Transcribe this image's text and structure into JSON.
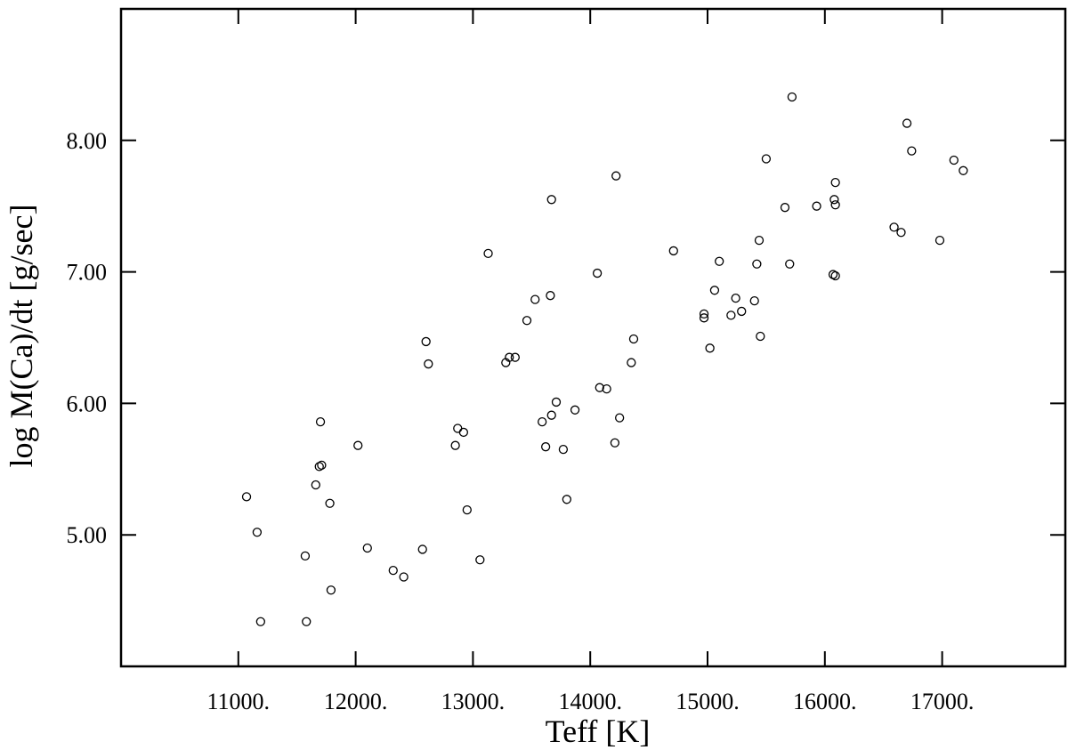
{
  "chart_data": {
    "type": "scatter",
    "xlabel": "Teff [K]",
    "ylabel": "log M(Ca)/dt [g/sec]",
    "xlim": [
      10000,
      18050
    ],
    "ylim": [
      4.0,
      9.0
    ],
    "x_ticks": [
      11000,
      12000,
      13000,
      14000,
      15000,
      16000,
      17000
    ],
    "x_tick_labels": [
      "11000.",
      "12000.",
      "13000.",
      "14000.",
      "15000.",
      "16000.",
      "17000."
    ],
    "y_ticks": [
      5,
      6,
      7,
      8
    ],
    "y_tick_labels": [
      "5.00",
      "6.00",
      "7.00",
      "8.00"
    ],
    "grid": false,
    "marker": "open-circle",
    "colors": {
      "marker": "#000000",
      "axes": "#000000",
      "background": "#ffffff"
    },
    "points": [
      {
        "x": 11070,
        "y": 5.29
      },
      {
        "x": 11160,
        "y": 5.02
      },
      {
        "x": 11190,
        "y": 4.34
      },
      {
        "x": 11570,
        "y": 4.84
      },
      {
        "x": 11580,
        "y": 4.34
      },
      {
        "x": 11660,
        "y": 5.38
      },
      {
        "x": 11690,
        "y": 5.52
      },
      {
        "x": 11710,
        "y": 5.53
      },
      {
        "x": 11700,
        "y": 5.86
      },
      {
        "x": 11780,
        "y": 5.24
      },
      {
        "x": 11790,
        "y": 4.58
      },
      {
        "x": 12020,
        "y": 5.68
      },
      {
        "x": 12100,
        "y": 4.9
      },
      {
        "x": 12320,
        "y": 4.73
      },
      {
        "x": 12410,
        "y": 4.68
      },
      {
        "x": 12570,
        "y": 4.89
      },
      {
        "x": 12600,
        "y": 6.47
      },
      {
        "x": 12620,
        "y": 6.3
      },
      {
        "x": 12850,
        "y": 5.68
      },
      {
        "x": 12870,
        "y": 5.81
      },
      {
        "x": 12920,
        "y": 5.78
      },
      {
        "x": 12950,
        "y": 5.19
      },
      {
        "x": 13060,
        "y": 4.81
      },
      {
        "x": 13130,
        "y": 7.14
      },
      {
        "x": 13280,
        "y": 6.31
      },
      {
        "x": 13310,
        "y": 6.35
      },
      {
        "x": 13360,
        "y": 6.35
      },
      {
        "x": 13460,
        "y": 6.63
      },
      {
        "x": 13530,
        "y": 6.79
      },
      {
        "x": 13590,
        "y": 5.86
      },
      {
        "x": 13620,
        "y": 5.67
      },
      {
        "x": 13660,
        "y": 6.82
      },
      {
        "x": 13670,
        "y": 5.91
      },
      {
        "x": 13670,
        "y": 7.55
      },
      {
        "x": 13710,
        "y": 6.01
      },
      {
        "x": 13770,
        "y": 5.65
      },
      {
        "x": 13800,
        "y": 5.27
      },
      {
        "x": 13870,
        "y": 5.95
      },
      {
        "x": 14060,
        "y": 6.99
      },
      {
        "x": 14080,
        "y": 6.12
      },
      {
        "x": 14140,
        "y": 6.11
      },
      {
        "x": 14210,
        "y": 5.7
      },
      {
        "x": 14220,
        "y": 7.73
      },
      {
        "x": 14250,
        "y": 5.89
      },
      {
        "x": 14350,
        "y": 6.31
      },
      {
        "x": 14370,
        "y": 6.49
      },
      {
        "x": 14710,
        "y": 7.16
      },
      {
        "x": 14970,
        "y": 6.68
      },
      {
        "x": 14970,
        "y": 6.65
      },
      {
        "x": 15020,
        "y": 6.42
      },
      {
        "x": 15060,
        "y": 6.86
      },
      {
        "x": 15100,
        "y": 7.08
      },
      {
        "x": 15200,
        "y": 6.67
      },
      {
        "x": 15240,
        "y": 6.8
      },
      {
        "x": 15290,
        "y": 6.7
      },
      {
        "x": 15400,
        "y": 6.78
      },
      {
        "x": 15420,
        "y": 7.06
      },
      {
        "x": 15440,
        "y": 7.24
      },
      {
        "x": 15450,
        "y": 6.51
      },
      {
        "x": 15500,
        "y": 7.86
      },
      {
        "x": 15660,
        "y": 7.49
      },
      {
        "x": 15700,
        "y": 7.06
      },
      {
        "x": 15720,
        "y": 8.33
      },
      {
        "x": 15930,
        "y": 7.5
      },
      {
        "x": 16070,
        "y": 6.98
      },
      {
        "x": 16080,
        "y": 7.55
      },
      {
        "x": 16090,
        "y": 7.68
      },
      {
        "x": 16090,
        "y": 6.97
      },
      {
        "x": 16090,
        "y": 7.51
      },
      {
        "x": 16590,
        "y": 7.34
      },
      {
        "x": 16650,
        "y": 7.3
      },
      {
        "x": 16700,
        "y": 8.13
      },
      {
        "x": 16740,
        "y": 7.92
      },
      {
        "x": 16980,
        "y": 7.24
      },
      {
        "x": 17100,
        "y": 7.85
      },
      {
        "x": 17180,
        "y": 7.77
      }
    ]
  }
}
